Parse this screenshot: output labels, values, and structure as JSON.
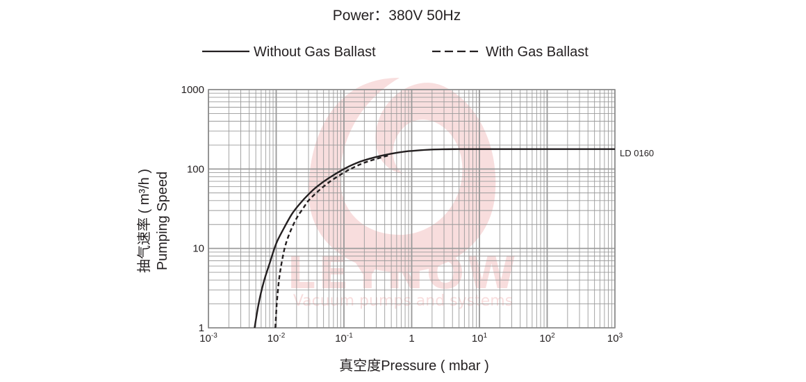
{
  "chart_data": {
    "type": "line",
    "title": "Power：380V 50Hz",
    "xlabel": "真空度Pressure ( mbar )",
    "ylabel": "抽气速率 ( m³/h )",
    "ylabel2": "Pumping Speed",
    "x_scale": "log",
    "y_scale": "log",
    "xlim": [
      0.001,
      1000
    ],
    "ylim": [
      1,
      1000
    ],
    "grid": true,
    "legend_position": "top",
    "x_ticks": [
      {
        "value": 0.001,
        "base": "10",
        "exp": "-3"
      },
      {
        "value": 0.01,
        "base": "10",
        "exp": "-2"
      },
      {
        "value": 0.1,
        "base": "10",
        "exp": "-1"
      },
      {
        "value": 1,
        "base": "1",
        "exp": ""
      },
      {
        "value": 10,
        "base": "10",
        "exp": "1"
      },
      {
        "value": 100,
        "base": "10",
        "exp": "2"
      },
      {
        "value": 1000,
        "base": "10",
        "exp": "3"
      }
    ],
    "y_ticks": [
      {
        "value": 1,
        "label": "1"
      },
      {
        "value": 10,
        "label": "10"
      },
      {
        "value": 100,
        "label": "100"
      },
      {
        "value": 1000,
        "label": "1000"
      }
    ],
    "series_label": "LD 0160",
    "series": [
      {
        "name": "Without Gas Ballast",
        "style": "solid",
        "color": "#231f20",
        "x": [
          0.0048,
          0.0055,
          0.0065,
          0.008,
          0.01,
          0.013,
          0.017,
          0.022,
          0.03,
          0.04,
          0.06,
          0.1,
          0.15,
          0.2,
          0.3,
          0.5,
          0.8,
          1,
          2,
          5,
          10,
          100,
          1000
        ],
        "y": [
          1,
          2,
          3.7,
          6.5,
          11.5,
          18,
          27,
          36,
          48,
          60,
          77,
          100,
          118,
          129,
          142,
          156,
          166,
          169,
          176,
          178,
          178,
          178,
          178
        ]
      },
      {
        "name": "With Gas Ballast",
        "style": "dashed",
        "color": "#231f20",
        "x": [
          0.0097,
          0.0102,
          0.011,
          0.012,
          0.0135,
          0.016,
          0.02,
          0.025,
          0.03,
          0.04,
          0.06,
          0.1,
          0.15,
          0.2,
          0.3,
          0.45
        ],
        "y": [
          1,
          2,
          4,
          6.5,
          10.5,
          16,
          24,
          32,
          40,
          51,
          68,
          90,
          108,
          120,
          134,
          148
        ]
      }
    ]
  },
  "watermark": {
    "brand": "LEYNOW",
    "tagline": "Vacuum pumps and systems",
    "color": "#e8a3a3"
  }
}
